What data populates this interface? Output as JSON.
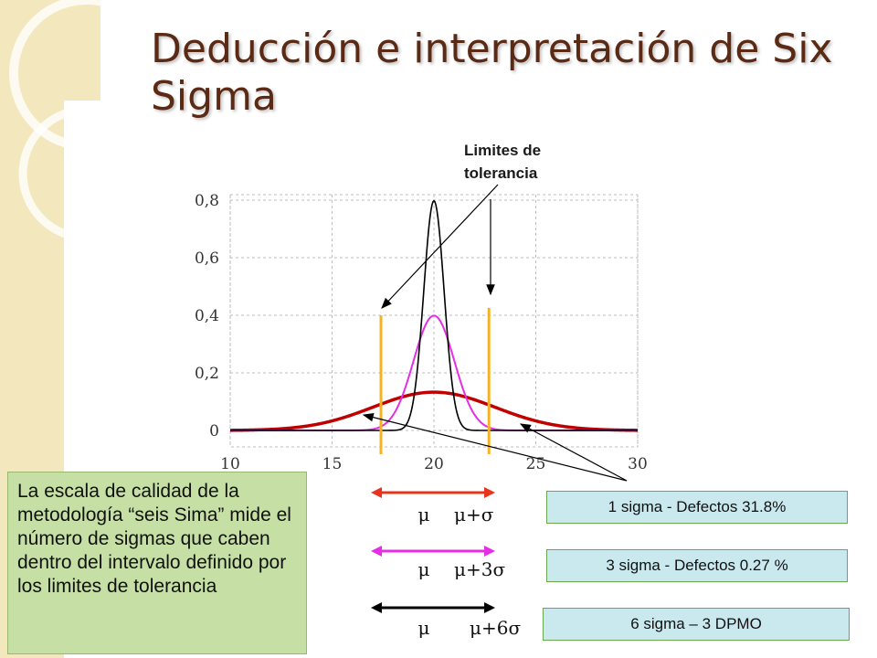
{
  "slide": {
    "title": "Deducción e interpretación de Six Sigma",
    "annotation": "Limites de tolerancia",
    "note": "La escala de calidad de la metodología “seis Sima” mide el número de sigmas que caben dentro del intervalo definido por los limites de tolerancia"
  },
  "legend_rows": [
    {
      "mu": "μ",
      "span": "μ+σ",
      "color": "#e8341c",
      "box": "1 sigma - Defectos 31.8%"
    },
    {
      "mu": "μ",
      "span": "μ+3σ",
      "color": "#e52de5",
      "box": "3 sigma - Defectos 0.27 %"
    },
    {
      "mu": "μ",
      "span": "μ+6σ",
      "color": "#000000",
      "box": "6 sigma – 3 DPMO"
    }
  ],
  "colors": {
    "title": "#5a2a14",
    "note_bg": "#c6dfa5",
    "box_bg": "#c9e9ef",
    "tolerance": "#f5b324",
    "grid": "#bdbdbd"
  },
  "chart_data": {
    "type": "line",
    "xlim": [
      10,
      30
    ],
    "ylim": [
      0,
      0.8
    ],
    "x_ticks": [
      "10",
      "15",
      "20",
      "25",
      "30"
    ],
    "y_ticks": [
      "0",
      "0,2",
      "0,4",
      "0,6",
      "0,8"
    ],
    "grid": true,
    "mean": 20,
    "tolerance_limits": [
      17.4,
      22.7
    ],
    "series": [
      {
        "sigma": 3,
        "color": "#c00000",
        "width": 3.5
      },
      {
        "sigma": 1,
        "color": "#e52de5",
        "width": 2
      },
      {
        "sigma": 0.5,
        "color": "#000000",
        "width": 1.6
      }
    ]
  }
}
